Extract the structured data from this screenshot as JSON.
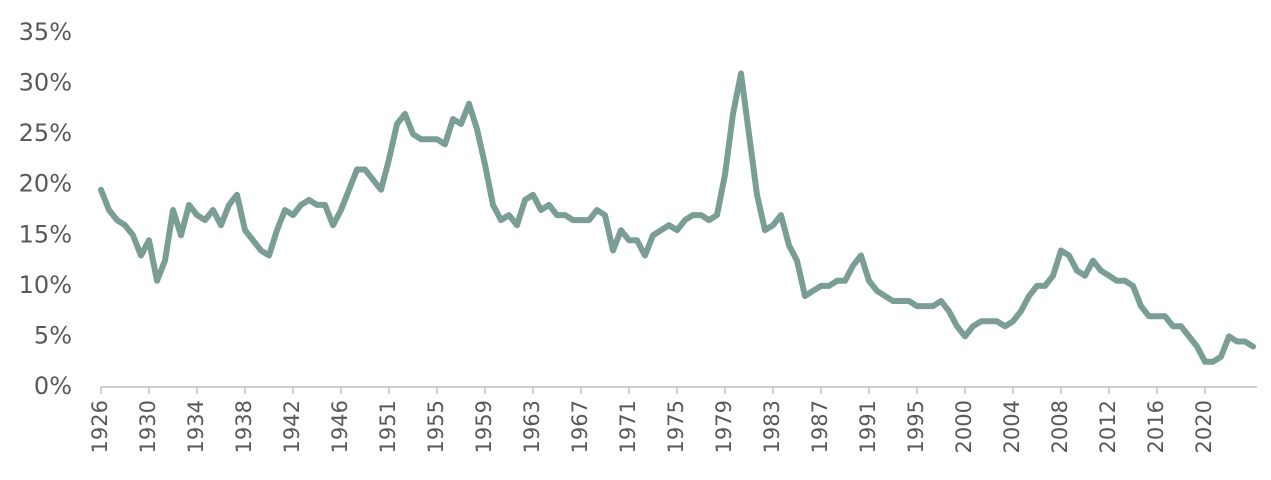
{
  "chart_data": {
    "type": "line",
    "categories": [
      "1926",
      null,
      null,
      null,
      null,
      null,
      "1930",
      null,
      null,
      null,
      null,
      null,
      "1934",
      null,
      null,
      null,
      null,
      null,
      "1938",
      null,
      null,
      null,
      null,
      null,
      "1942",
      null,
      null,
      null,
      null,
      null,
      "1946",
      null,
      null,
      null,
      null,
      null,
      "1951",
      null,
      null,
      null,
      null,
      null,
      "1955",
      null,
      null,
      null,
      null,
      null,
      "1959",
      null,
      null,
      null,
      null,
      null,
      "1963",
      null,
      null,
      null,
      null,
      null,
      "1967",
      null,
      null,
      null,
      null,
      null,
      "1971",
      null,
      null,
      null,
      null,
      null,
      "1975",
      null,
      null,
      null,
      null,
      null,
      "1979",
      null,
      null,
      null,
      null,
      null,
      "1983",
      null,
      null,
      null,
      null,
      null,
      "1987",
      null,
      null,
      null,
      null,
      null,
      "1991",
      null,
      null,
      null,
      null,
      null,
      "1995",
      null,
      null,
      null,
      null,
      null,
      "2000",
      null,
      null,
      null,
      null,
      null,
      "2004",
      null,
      null,
      null,
      null,
      null,
      "2008",
      null,
      null,
      null,
      null,
      null,
      "2012",
      null,
      null,
      null,
      null,
      null,
      "2016",
      null,
      null,
      null,
      null,
      null,
      "2020",
      null,
      null,
      null,
      null,
      null,
      null
    ],
    "values": [
      19.5,
      17.5,
      16.5,
      16,
      15,
      13,
      14.5,
      10.5,
      12.5,
      17.5,
      15,
      18,
      17,
      16.5,
      17.5,
      16,
      18,
      19,
      15.5,
      14.5,
      13.5,
      13,
      15.5,
      17.5,
      17,
      18,
      18.5,
      18,
      18,
      16,
      17.5,
      19.5,
      21.5,
      21.5,
      20.5,
      19.5,
      22.5,
      26,
      27,
      25,
      24.5,
      24.5,
      24.5,
      24,
      26.5,
      26,
      28,
      25.5,
      22,
      18,
      16.5,
      17,
      16,
      18.5,
      19,
      17.5,
      18,
      17,
      17,
      16.5,
      16.5,
      16.5,
      17.5,
      17,
      13.5,
      15.5,
      14.5,
      14.5,
      13,
      15,
      15.5,
      16,
      15.5,
      16.5,
      17,
      17,
      16.5,
      17,
      21,
      27,
      31,
      25,
      19,
      15.5,
      16,
      17,
      14,
      12.5,
      9,
      9.5,
      10,
      10,
      10.5,
      10.5,
      12,
      13,
      10.5,
      9.5,
      9,
      8.5,
      8.5,
      8.5,
      8,
      8,
      8,
      8.5,
      7.5,
      6,
      5,
      6,
      6.5,
      6.5,
      6.5,
      6,
      6.5,
      7.5,
      9,
      10,
      10,
      11,
      13.5,
      13,
      11.5,
      11,
      12.5,
      11.5,
      11,
      10.5,
      10.5,
      10,
      8,
      7,
      7,
      7,
      6,
      6,
      5,
      4,
      2.5,
      2.5,
      3,
      5,
      4.5,
      4.5,
      4
    ],
    "color": "#7a9e96",
    "ylim": [
      0,
      35
    ],
    "yticks": [
      {
        "value": 0,
        "label": "0%"
      },
      {
        "value": 5,
        "label": "5%"
      },
      {
        "value": 10,
        "label": "10%"
      },
      {
        "value": 15,
        "label": "15%"
      },
      {
        "value": 20,
        "label": "20%"
      },
      {
        "value": 25,
        "label": "25%"
      },
      {
        "value": 30,
        "label": "30%"
      },
      {
        "value": 35,
        "label": "35%"
      }
    ],
    "grid": false
  }
}
